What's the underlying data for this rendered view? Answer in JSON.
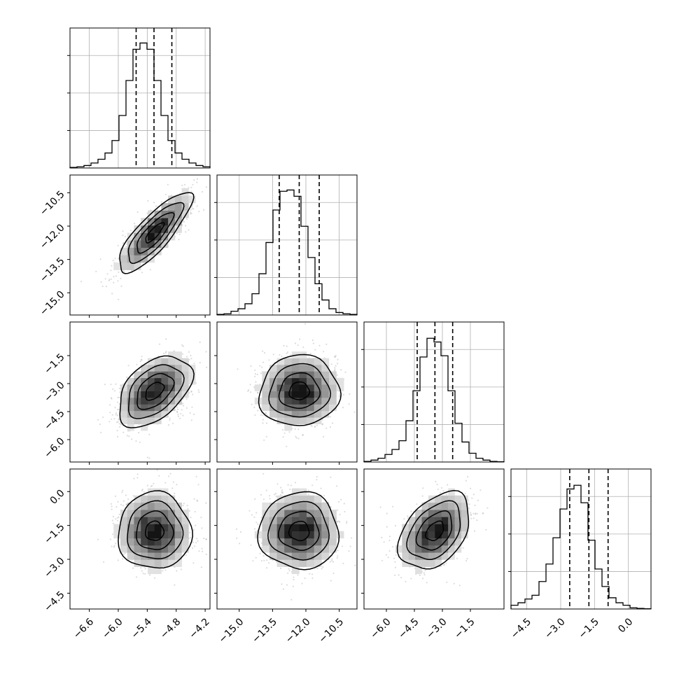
{
  "chart_data": {
    "type": "corner",
    "grid": true,
    "colors": {
      "ink": "#000000",
      "grid": "#b0b0b0",
      "scatter": "#9a9a9a"
    },
    "axes_ranges": [
      [
        -7.0,
        -4.1
      ],
      [
        -16.0,
        -9.7
      ],
      [
        -7.2,
        0.3
      ],
      [
        -5.2,
        1.0
      ]
    ],
    "ticks": [
      [
        -6.6,
        -6.0,
        -5.4,
        -4.8,
        -4.2
      ],
      [
        -15.0,
        -13.5,
        -12.0,
        -10.5
      ],
      [
        -6.0,
        -4.5,
        -3.0,
        -1.5
      ],
      [
        -4.5,
        -3.0,
        -1.5,
        0.0
      ]
    ],
    "tick_labels": [
      [
        "−6.6",
        "−6.0",
        "−5.4",
        "−4.8",
        "−4.2"
      ],
      [
        "−15.0",
        "−13.5",
        "−12.0",
        "−10.5"
      ],
      [
        "−6.0",
        "−4.5",
        "−3.0",
        "−1.5"
      ],
      [
        "−4.5",
        "−3.0",
        "−1.5",
        "0.0"
      ]
    ],
    "means": [
      -5.25,
      -12.3,
      -3.4,
      -1.75
    ],
    "stds": [
      0.38,
      0.9,
      0.95,
      0.85
    ],
    "correlations": {
      "1,0": 0.82,
      "2,0": 0.45,
      "2,1": 0.05,
      "3,0": 0.0,
      "3,1": 0.0,
      "3,2": 0.4
    },
    "quantiles": [
      [
        -5.63,
        -5.26,
        -4.89
      ],
      [
        -13.2,
        -12.3,
        -11.4
      ],
      [
        -4.35,
        -3.4,
        -2.45
      ],
      [
        -2.6,
        -1.75,
        -0.9
      ]
    ],
    "histograms": [
      [
        0.005,
        0.01,
        0.02,
        0.04,
        0.07,
        0.12,
        0.22,
        0.42,
        0.7,
        0.95,
        1.0,
        0.95,
        0.7,
        0.42,
        0.22,
        0.12,
        0.07,
        0.04,
        0.02,
        0.01
      ],
      [
        0.005,
        0.01,
        0.03,
        0.05,
        0.09,
        0.17,
        0.33,
        0.58,
        0.84,
        0.99,
        1.0,
        0.95,
        0.71,
        0.46,
        0.25,
        0.12,
        0.05,
        0.02,
        0.01,
        0.005
      ],
      [
        0.005,
        0.015,
        0.03,
        0.06,
        0.1,
        0.17,
        0.33,
        0.57,
        0.84,
        0.99,
        0.96,
        0.85,
        0.57,
        0.31,
        0.16,
        0.07,
        0.03,
        0.015,
        0.005,
        0.002
      ],
      [
        0.03,
        0.05,
        0.08,
        0.11,
        0.22,
        0.36,
        0.57,
        0.8,
        0.96,
        0.99,
        0.85,
        0.55,
        0.32,
        0.18,
        0.09,
        0.05,
        0.03,
        0.01,
        0.005,
        0.002
      ]
    ],
    "hist_ylim": [
      0,
      1.12
    ],
    "hist_yticks": [
      0.3,
      0.6,
      0.9
    ]
  }
}
